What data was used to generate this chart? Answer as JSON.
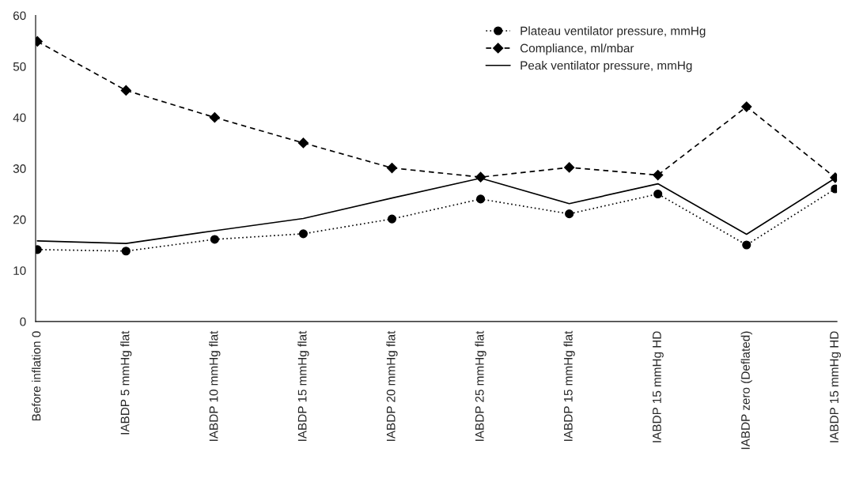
{
  "chart_data": {
    "type": "line",
    "categories": [
      "Before inflation 0",
      "IABDP 5 mmHg flat",
      "IABDP 10 mmHg flat",
      "IABDP 15 mmHg flat",
      "IABDP 20 mmHg flat",
      "IABDP 25 mmHg flat",
      "IABDP 15 mmHg flat",
      "IABDP 15 mmHg HD",
      "IABDP zero (Deflated)",
      "IABDP 15 mmHg HD"
    ],
    "series": [
      {
        "name": "Plateau ventilator pressure, mmHg",
        "color": "#000000",
        "marker": "circle",
        "line_style": "dotted",
        "values": [
          14.1,
          13.8,
          16.1,
          17.2,
          20.1,
          24.0,
          21.1,
          25.0,
          15.0,
          26.0
        ]
      },
      {
        "name": "Compliance, ml/mbar",
        "color": "#000000",
        "marker": "diamond",
        "line_style": "dashed",
        "values": [
          54.9,
          45.3,
          40.0,
          35.0,
          30.1,
          28.3,
          30.2,
          28.7,
          42.1,
          28.2
        ]
      },
      {
        "name": "Peak ventilator pressure, mmHg",
        "color": "#000000",
        "marker": "none",
        "line_style": "solid",
        "values": [
          15.8,
          15.3,
          17.8,
          20.2,
          24.2,
          28.1,
          23.1,
          27.0,
          17.1,
          28.1
        ]
      }
    ],
    "ylim": [
      0,
      60
    ],
    "yticks": [
      0,
      10,
      20,
      30,
      40,
      50,
      60
    ],
    "grid": false,
    "legend": "top right"
  }
}
